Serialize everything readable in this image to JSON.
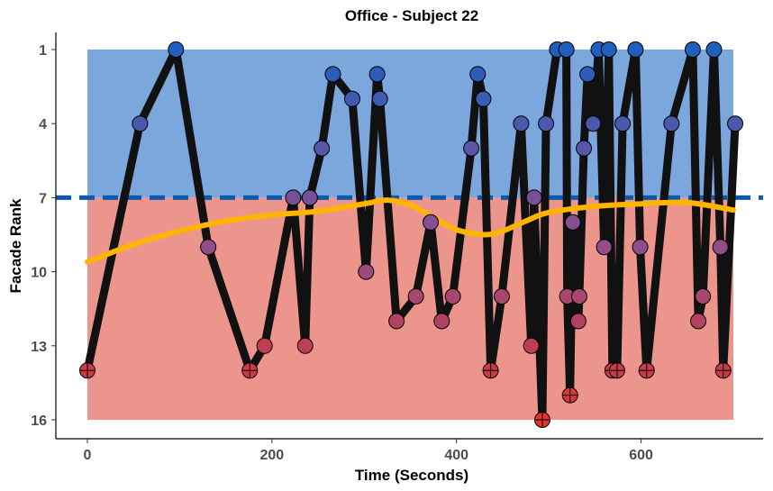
{
  "chart_data": {
    "type": "line",
    "title": "Office - Subject 22",
    "xlabel": "Time (Seconds)",
    "ylabel": "Facade Rank",
    "xlim": [
      0,
      700
    ],
    "ylim": [
      1,
      16
    ],
    "y_reversed": true,
    "x_ticks": [
      0,
      200,
      400,
      600
    ],
    "y_ticks": [
      1,
      4,
      7,
      10,
      13,
      16
    ],
    "threshold": 7,
    "bands": [
      {
        "name": "upper",
        "from": 1,
        "to": 7,
        "color": "#7ba7dc"
      },
      {
        "name": "lower",
        "from": 7,
        "to": 16,
        "color": "#ec958d"
      }
    ],
    "colors": {
      "line": "#111111",
      "smooth": "#ffb400",
      "threshold": "#0a59ab",
      "rank_best": "#1f5fbe",
      "rank_mid": "#8a4f8f",
      "rank_worst": "#e0352b"
    },
    "series": [
      {
        "points": [
          [
            0,
            14
          ],
          [
            57,
            4
          ],
          [
            96,
            1
          ],
          [
            131,
            9
          ],
          [
            176,
            14
          ],
          [
            192,
            13
          ],
          [
            223,
            7
          ],
          [
            236,
            13
          ],
          [
            241,
            7
          ],
          [
            254,
            5
          ],
          [
            266,
            2
          ],
          [
            287,
            3
          ],
          [
            302,
            10
          ],
          [
            314,
            2
          ],
          [
            317,
            3
          ],
          [
            335,
            12
          ],
          [
            356,
            11
          ],
          [
            372,
            8
          ],
          [
            384,
            12
          ],
          [
            396,
            11
          ],
          [
            416,
            5
          ],
          [
            423,
            2
          ],
          [
            429,
            3
          ],
          [
            437,
            14
          ],
          [
            449,
            11
          ],
          [
            470,
            4
          ],
          [
            481,
            13
          ],
          [
            484,
            7
          ],
          [
            493,
            16
          ],
          [
            497,
            4
          ],
          [
            509,
            1
          ],
          [
            519,
            1
          ],
          [
            520,
            11
          ],
          [
            523,
            15
          ],
          [
            526,
            8
          ],
          [
            532,
            12
          ],
          [
            533,
            11
          ],
          [
            538,
            5
          ],
          [
            542,
            2
          ],
          [
            548,
            4
          ],
          [
            554,
            1
          ],
          [
            560,
            9
          ],
          [
            565,
            1
          ],
          [
            569,
            14
          ],
          [
            574,
            14
          ],
          [
            580,
            4
          ],
          [
            594,
            1
          ],
          [
            599,
            9
          ],
          [
            606,
            14
          ],
          [
            633,
            4
          ],
          [
            656,
            1
          ],
          [
            662,
            12
          ],
          [
            667,
            11
          ],
          [
            679,
            1
          ],
          [
            686,
            9
          ],
          [
            689,
            14
          ],
          [
            702,
            4
          ]
        ]
      }
    ],
    "smooth_line": [
      [
        0,
        9.6
      ],
      [
        50,
        8.9
      ],
      [
        100,
        8.35
      ],
      [
        150,
        7.95
      ],
      [
        200,
        7.7
      ],
      [
        250,
        7.55
      ],
      [
        300,
        7.25
      ],
      [
        325,
        7.1
      ],
      [
        350,
        7.3
      ],
      [
        375,
        7.8
      ],
      [
        400,
        8.3
      ],
      [
        430,
        8.5
      ],
      [
        450,
        8.35
      ],
      [
        475,
        7.95
      ],
      [
        500,
        7.6
      ],
      [
        550,
        7.35
      ],
      [
        600,
        7.25
      ],
      [
        650,
        7.2
      ],
      [
        700,
        7.5
      ]
    ]
  }
}
